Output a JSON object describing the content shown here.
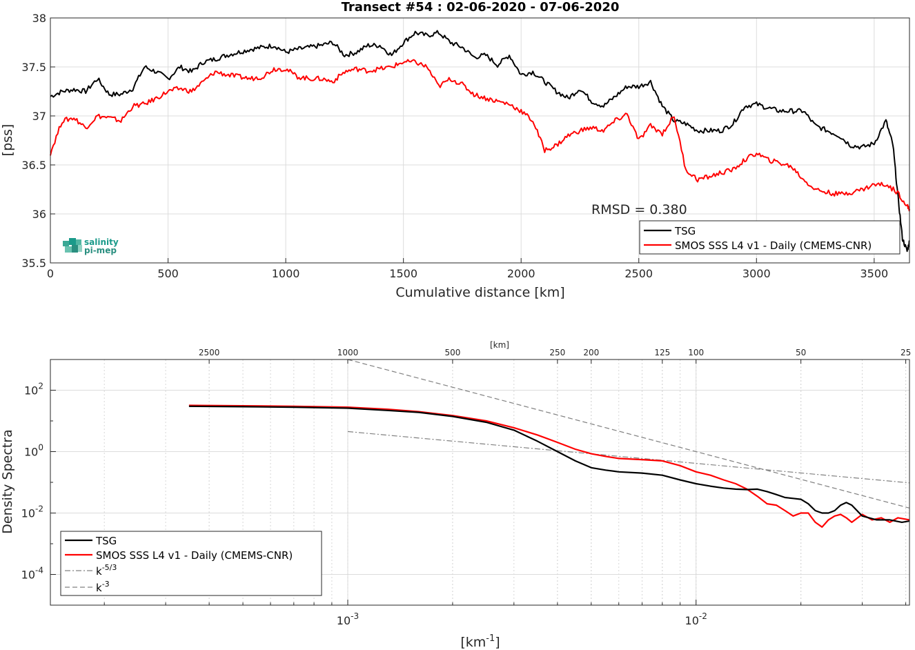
{
  "colors": {
    "tsg": "#000000",
    "smos": "#ff0000",
    "ref": "#808080",
    "logo": "#1a9a8a"
  },
  "logo": {
    "line1": "salinity",
    "line2": "pi-mep"
  },
  "chart_data": [
    {
      "type": "line",
      "title": "Transect #54 : 02-06-2020 - 07-06-2020",
      "xlabel": "Cumulative distance [km]",
      "ylabel": "[pss]",
      "xlim": [
        0,
        3650
      ],
      "ylim": [
        35.5,
        38
      ],
      "xticks": [
        "0",
        "500",
        "1000",
        "1500",
        "2000",
        "2500",
        "3000",
        "3500"
      ],
      "yticks": [
        "35.5",
        "36",
        "36.5",
        "37",
        "37.5",
        "38"
      ],
      "grid": true,
      "legend_position": "bottom-right",
      "annotation": "RMSD = 0.380",
      "series": [
        {
          "name": "TSG",
          "x": [
            0,
            50,
            100,
            150,
            200,
            250,
            300,
            350,
            400,
            450,
            500,
            550,
            600,
            650,
            700,
            750,
            800,
            850,
            900,
            950,
            1000,
            1050,
            1100,
            1150,
            1200,
            1250,
            1300,
            1350,
            1400,
            1450,
            1500,
            1550,
            1600,
            1650,
            1700,
            1750,
            1800,
            1850,
            1900,
            1950,
            2000,
            2050,
            2100,
            2150,
            2200,
            2250,
            2300,
            2350,
            2400,
            2450,
            2500,
            2550,
            2600,
            2650,
            2700,
            2750,
            2800,
            2850,
            2900,
            2950,
            3000,
            3050,
            3100,
            3150,
            3200,
            3250,
            3300,
            3350,
            3400,
            3450,
            3500,
            3550,
            3580,
            3600,
            3620,
            3640,
            3650
          ],
          "y": [
            37.2,
            37.25,
            37.27,
            37.25,
            37.38,
            37.22,
            37.22,
            37.28,
            37.5,
            37.45,
            37.38,
            37.5,
            37.45,
            37.55,
            37.58,
            37.62,
            37.65,
            37.68,
            37.7,
            37.72,
            37.65,
            37.68,
            37.7,
            37.72,
            37.75,
            37.62,
            37.65,
            37.72,
            37.72,
            37.62,
            37.75,
            37.85,
            37.82,
            37.85,
            37.75,
            37.7,
            37.6,
            37.62,
            37.52,
            37.62,
            37.42,
            37.45,
            37.35,
            37.25,
            37.18,
            37.28,
            37.15,
            37.1,
            37.2,
            37.3,
            37.3,
            37.35,
            37.1,
            36.95,
            36.92,
            36.85,
            36.85,
            36.85,
            36.92,
            37.1,
            37.12,
            37.08,
            37.05,
            37.05,
            37.05,
            36.9,
            36.85,
            36.8,
            36.7,
            36.68,
            36.72,
            36.95,
            36.7,
            36.2,
            35.75,
            35.62,
            35.72
          ]
        },
        {
          "name": "SMOS SSS L4 v1 - Daily (CMEMS-CNR)",
          "x": [
            0,
            50,
            100,
            150,
            200,
            250,
            300,
            350,
            400,
            450,
            500,
            550,
            600,
            650,
            700,
            750,
            800,
            850,
            900,
            950,
            1000,
            1050,
            1100,
            1150,
            1200,
            1250,
            1300,
            1350,
            1400,
            1450,
            1500,
            1550,
            1600,
            1650,
            1700,
            1750,
            1800,
            1850,
            1900,
            1950,
            2000,
            2050,
            2100,
            2150,
            2200,
            2250,
            2300,
            2350,
            2400,
            2450,
            2500,
            2550,
            2600,
            2650,
            2700,
            2750,
            2800,
            2850,
            2900,
            2950,
            3000,
            3050,
            3100,
            3150,
            3200,
            3250,
            3300,
            3350,
            3400,
            3450,
            3500,
            3550,
            3600,
            3640,
            3650
          ],
          "y": [
            36.62,
            36.95,
            36.98,
            36.88,
            37.0,
            36.98,
            36.95,
            37.1,
            37.12,
            37.18,
            37.25,
            37.28,
            37.25,
            37.35,
            37.45,
            37.42,
            37.4,
            37.38,
            37.4,
            37.48,
            37.48,
            37.4,
            37.38,
            37.38,
            37.35,
            37.45,
            37.48,
            37.46,
            37.48,
            37.5,
            37.55,
            37.55,
            37.5,
            37.3,
            37.38,
            37.32,
            37.22,
            37.18,
            37.15,
            37.12,
            37.05,
            36.95,
            36.65,
            36.7,
            36.8,
            36.85,
            36.88,
            36.85,
            36.95,
            37.02,
            36.75,
            36.9,
            36.82,
            37.0,
            36.45,
            36.35,
            36.38,
            36.42,
            36.45,
            36.55,
            36.62,
            36.55,
            36.52,
            36.48,
            36.35,
            36.25,
            36.22,
            36.2,
            36.22,
            36.25,
            36.3,
            36.3,
            36.22,
            36.08,
            36.05
          ]
        }
      ]
    },
    {
      "type": "line",
      "title": "",
      "xlabel": "[km-1]",
      "ylabel": "Density Spectra",
      "x_scale": "log",
      "y_scale": "log",
      "xlim": [
        0.00014,
        0.041
      ],
      "ylim": [
        1e-05,
        1000
      ],
      "top_axis_label": "[km]",
      "top_ticks": [
        "2500",
        "1000",
        "500",
        "250",
        "200",
        "125",
        "100",
        "50",
        "25"
      ],
      "top_tick_values": [
        2500,
        1000,
        500,
        250,
        200,
        125,
        100,
        50,
        25
      ],
      "xticks": [
        "0.001",
        "0.01"
      ],
      "yticks": [
        "0.0001",
        "0.01",
        "1",
        "100"
      ],
      "grid": true,
      "legend_position": "bottom-left",
      "series": [
        {
          "name": "TSG",
          "x": [
            0.00035,
            0.0005,
            0.0007,
            0.001,
            0.0013,
            0.0016,
            0.002,
            0.0025,
            0.003,
            0.0035,
            0.004,
            0.0045,
            0.005,
            0.0055,
            0.006,
            0.007,
            0.008,
            0.009,
            0.01,
            0.011,
            0.012,
            0.013,
            0.014,
            0.015,
            0.016,
            0.017,
            0.018,
            0.019,
            0.02,
            0.021,
            0.022,
            0.023,
            0.024,
            0.025,
            0.026,
            0.027,
            0.028,
            0.03,
            0.033,
            0.036,
            0.039,
            0.041
          ],
          "y": [
            30,
            29,
            28,
            26,
            22,
            19,
            14,
            9,
            5,
            2.2,
            1,
            0.5,
            0.3,
            0.25,
            0.22,
            0.2,
            0.17,
            0.12,
            0.09,
            0.075,
            0.065,
            0.06,
            0.058,
            0.06,
            0.05,
            0.04,
            0.032,
            0.03,
            0.028,
            0.02,
            0.012,
            0.01,
            0.01,
            0.012,
            0.018,
            0.022,
            0.018,
            0.008,
            0.006,
            0.006,
            0.005,
            0.0055
          ]
        },
        {
          "name": "SMOS SSS L4 v1 - Daily (CMEMS-CNR)",
          "x": [
            0.00035,
            0.0005,
            0.0007,
            0.001,
            0.0013,
            0.0016,
            0.002,
            0.0025,
            0.003,
            0.0035,
            0.004,
            0.0045,
            0.005,
            0.0055,
            0.006,
            0.007,
            0.008,
            0.009,
            0.01,
            0.011,
            0.012,
            0.013,
            0.014,
            0.015,
            0.016,
            0.017,
            0.018,
            0.019,
            0.02,
            0.021,
            0.022,
            0.023,
            0.024,
            0.025,
            0.026,
            0.027,
            0.028,
            0.03,
            0.032,
            0.034,
            0.036,
            0.038,
            0.041
          ],
          "y": [
            32,
            31,
            30,
            28,
            24,
            20,
            15,
            10,
            6,
            3.5,
            2,
            1.2,
            0.85,
            0.7,
            0.6,
            0.55,
            0.5,
            0.35,
            0.22,
            0.17,
            0.12,
            0.09,
            0.06,
            0.035,
            0.02,
            0.018,
            0.012,
            0.008,
            0.01,
            0.01,
            0.005,
            0.0035,
            0.006,
            0.008,
            0.009,
            0.007,
            0.005,
            0.009,
            0.006,
            0.007,
            0.005,
            0.007,
            0.006
          ]
        },
        {
          "name": "k-5/3",
          "x": [
            0.001,
            0.041
          ],
          "y": [
            4.5,
            0.0957
          ]
        },
        {
          "name": "k-3",
          "x": [
            0.001,
            0.041
          ],
          "y": [
            1000,
            0.0145
          ]
        }
      ]
    }
  ]
}
